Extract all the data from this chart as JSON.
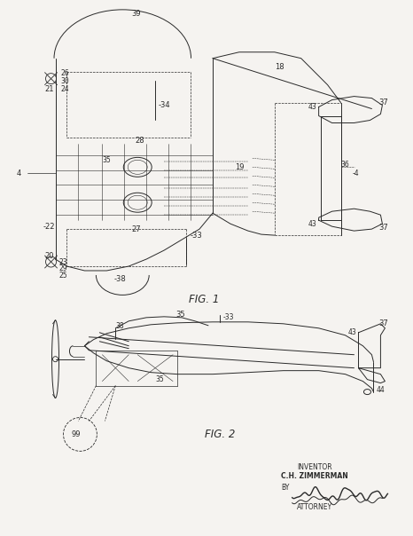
{
  "bg_color": "#f5f3f0",
  "line_color": "#2a2a2a",
  "fig_width": 4.66,
  "fig_height": 6.04,
  "dpi": 100,
  "fig1_label": "FIG. 1",
  "fig2_label": "FIG. 2",
  "inventor_line1": "INVENTOR",
  "inventor_line2": "C.H. ZIMMERMAN",
  "by_text": "BY",
  "attorney_text": "ATTORNEY"
}
